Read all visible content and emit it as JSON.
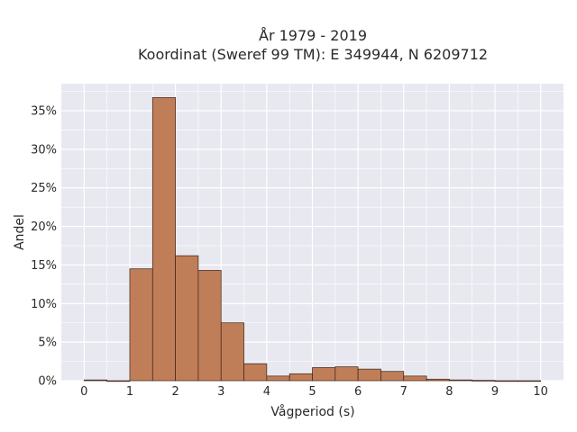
{
  "chart_data": {
    "type": "bar",
    "title_line1": "År 1979 - 2019",
    "title_line2": "Koordinat (Sweref 99 TM): E 349944, N 6209712",
    "xlabel": "Vågperiod (s)",
    "ylabel": "Andel",
    "bin_width": 0.5,
    "bin_starts": [
      0,
      0.5,
      1,
      1.5,
      2,
      2.5,
      3,
      3.5,
      4,
      4.5,
      5,
      5.5,
      6,
      6.5,
      7,
      7.5,
      8,
      8.5,
      9,
      9.5
    ],
    "values": [
      0.1,
      0.0,
      14.5,
      36.7,
      16.2,
      14.3,
      7.5,
      2.2,
      0.6,
      0.9,
      1.7,
      1.8,
      1.5,
      1.2,
      0.6,
      0.2,
      0.1,
      0.05,
      0.0,
      0.0
    ],
    "xlim": [
      -0.5,
      10.5
    ],
    "ylim": [
      0,
      38.5
    ],
    "x_ticks": [
      "0",
      "1",
      "2",
      "3",
      "4",
      "5",
      "6",
      "7",
      "8",
      "9",
      "10"
    ],
    "y_ticks": [
      "0%",
      "5%",
      "10%",
      "15%",
      "20%",
      "25%",
      "30%",
      "35%"
    ],
    "bar_color": "#c07e58",
    "bar_edge": "#3b2316",
    "plot_bg": "#e8e8f0",
    "grid": true
  }
}
